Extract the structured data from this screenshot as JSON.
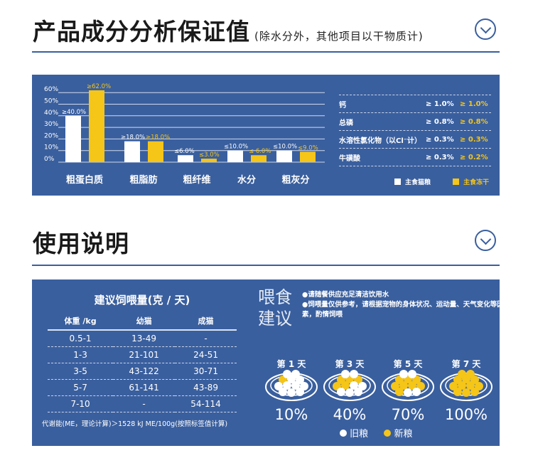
{
  "section1": {
    "title": "产品成分分析保证值",
    "subtitle": "(除水分外，其他项目以干物质计)"
  },
  "section2": {
    "title": "使用说明"
  },
  "chart_data": {
    "type": "bar",
    "categories": [
      "粗蛋白质",
      "粗脂肪",
      "粗纤维",
      "水分",
      "粗灰分"
    ],
    "yticks": [
      "60%",
      "50%",
      "40%",
      "30%",
      "20%",
      "10%",
      "0%"
    ],
    "ylim": [
      0,
      60
    ],
    "series": [
      {
        "name": "主食猫粮",
        "color": "#ffffff",
        "values": [
          40,
          18,
          6,
          10,
          10
        ],
        "labels": [
          "≥40.0%",
          "≥18.0%",
          "≤6.0%",
          "≤10.0%",
          "≤10.0%"
        ]
      },
      {
        "name": "主食冻干",
        "color": "#f5c518",
        "values": [
          62,
          18,
          3,
          6,
          9
        ],
        "labels": [
          "≥62.0%",
          "≥18.0%",
          "≤3.0%",
          "≤ 6.0%",
          "≤9.0%"
        ]
      }
    ]
  },
  "nutrients": [
    {
      "name": "钙",
      "a": "≥ 1.0%",
      "b": "≥ 1.0%"
    },
    {
      "name": "总磷",
      "a": "≥ 0.8%",
      "b": "≥ 0.8%"
    },
    {
      "name": "水溶性氯化物（以Cl⁻计）",
      "a": "≥ 0.3%",
      "b": "≥ 0.3%"
    },
    {
      "name": "牛磺酸",
      "a": "≥ 0.3%",
      "b": "≥ 0.2%"
    }
  ],
  "legend": {
    "a": "主食猫粮",
    "b": "主食冻干"
  },
  "feeding": {
    "title": "建议饲喂量(克 / 天)",
    "headers": [
      "体重 /kg",
      "幼猫",
      "成猫"
    ],
    "rows": [
      [
        "0.5-1",
        "13-49",
        "-"
      ],
      [
        "1-3",
        "21-101",
        "24-51"
      ],
      [
        "3-5",
        "43-122",
        "30-71"
      ],
      [
        "5-7",
        "61-141",
        "43-89"
      ],
      [
        "7-10",
        "-",
        "54-114"
      ]
    ],
    "note": "代谢能(ME，理论计算)＞1528 kJ ME/100g(按照标签值计算)"
  },
  "advice": {
    "title1": "喂食",
    "title2": "建议",
    "tips": [
      "●请随餐供应充足清洁饮用水",
      "●饲喂量仅供参考，请根据宠物的身体状况、运动量、天气变化等因素，酌情饲喂"
    ]
  },
  "transition": [
    {
      "day": "第 1 天",
      "pct": "10%",
      "frac": 0.1
    },
    {
      "day": "第 3 天",
      "pct": "40%",
      "frac": 0.4
    },
    {
      "day": "第 5 天",
      "pct": "70%",
      "frac": 0.7
    },
    {
      "day": "第 7 天",
      "pct": "100%",
      "frac": 1.0
    }
  ],
  "grain_legend": {
    "old": "旧粮",
    "new": "新粮"
  },
  "colors": {
    "blue": "#3a5f9e",
    "yellow": "#f5c518"
  }
}
